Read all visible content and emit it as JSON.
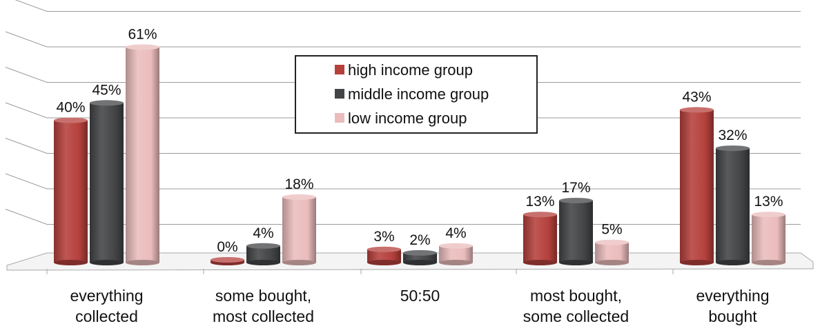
{
  "chart_data": {
    "type": "bar",
    "title": "",
    "xlabel": "",
    "ylabel": "",
    "ylim": [
      0,
      70
    ],
    "grid": true,
    "legend_position": "top-center",
    "categories": [
      [
        "everything",
        "collected"
      ],
      [
        "some bought,",
        "most collected"
      ],
      [
        "50:50"
      ],
      [
        "most bought,",
        "some collected"
      ],
      [
        "everything",
        "bought"
      ]
    ],
    "series": [
      {
        "name": "high income group",
        "color": "#b5403c",
        "values": [
          40,
          0,
          3,
          13,
          43
        ],
        "labels": [
          "40%",
          "0%",
          "3%",
          "13%",
          "43%"
        ]
      },
      {
        "name": "middle income group",
        "color": "#424446",
        "values": [
          45,
          4,
          2,
          17,
          32
        ],
        "labels": [
          "45%",
          "4%",
          "2%",
          "17%",
          "32%"
        ]
      },
      {
        "name": "low income group",
        "color": "#ebbcbc",
        "values": [
          61,
          18,
          4,
          5,
          13
        ],
        "labels": [
          "61%",
          "18%",
          "4%",
          "5%",
          "13%"
        ]
      }
    ]
  }
}
